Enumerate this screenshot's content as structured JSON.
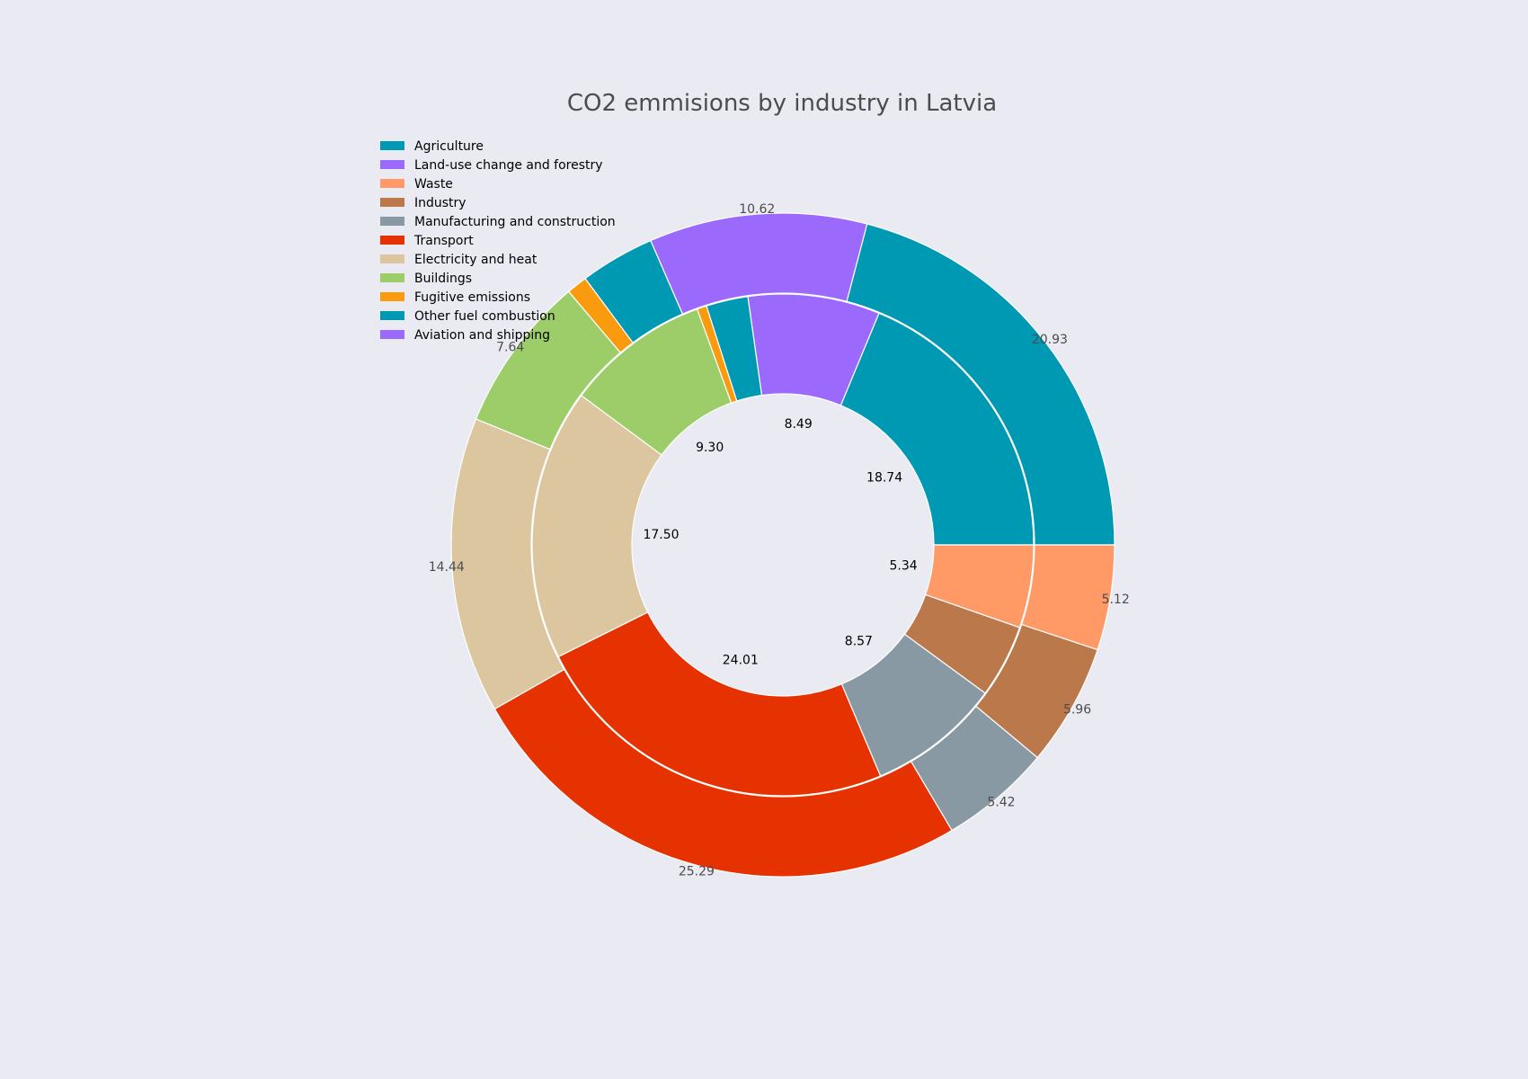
{
  "chart_data": {
    "type": "pie",
    "variant": "nested-donut",
    "title": "CO2 emmisions by industry in Latvia",
    "background": "#eaeaf2",
    "legend_position": "top-left",
    "legend": [
      {
        "name": "Agriculture",
        "color": "#0099b4"
      },
      {
        "name": "Land-use change and forestry",
        "color": "#9b6afc"
      },
      {
        "name": "Waste",
        "color": "#ff9966"
      },
      {
        "name": "Industry",
        "color": "#bb794b"
      },
      {
        "name": "Manufacturing and construction",
        "color": "#8899a3"
      },
      {
        "name": "Transport",
        "color": "#e53200"
      },
      {
        "name": "Electricity and heat",
        "color": "#dbc6a0"
      },
      {
        "name": "Buildings",
        "color": "#9ccd69"
      },
      {
        "name": "Fugitive emissions",
        "color": "#fa9a0e"
      },
      {
        "name": "Other fuel combustion",
        "color": "#0099b4"
      },
      {
        "name": "Aviation and shipping",
        "color": "#9b6afc"
      }
    ],
    "series": [
      {
        "name": "",
        "ring": "outer",
        "values": [
          20.93,
          10.62,
          3.64,
          1.01,
          7.64,
          14.44,
          25.29,
          5.42,
          5.96,
          5.12
        ],
        "labels": [
          "20.93",
          "10.62",
          "",
          "",
          "7.64",
          "14.44",
          "25.29",
          "5.42",
          "5.96",
          "5.12"
        ],
        "colors": [
          "#0099b4",
          "#9b6afc",
          "#0099b4",
          "#fa9a0e",
          "#9ccd69",
          "#dbc6a0",
          "#e53200",
          "#8899a3",
          "#bb794b",
          "#ff9966"
        ]
      },
      {
        "name": "",
        "ring": "inner",
        "values": [
          18.74,
          8.49,
          2.7,
          0.62,
          9.3,
          17.5,
          24.01,
          8.57,
          4.72,
          5.34
        ],
        "labels": [
          "18.74",
          "8.49",
          "",
          "",
          "9.30",
          "17.50",
          "24.01",
          "8.57",
          "",
          "5.34"
        ],
        "colors": [
          "#0099b4",
          "#9b6afc",
          "#0099b4",
          "#fa9a0e",
          "#9ccd69",
          "#dbc6a0",
          "#e53200",
          "#8899a3",
          "#bb794b",
          "#ff9966"
        ]
      }
    ]
  }
}
